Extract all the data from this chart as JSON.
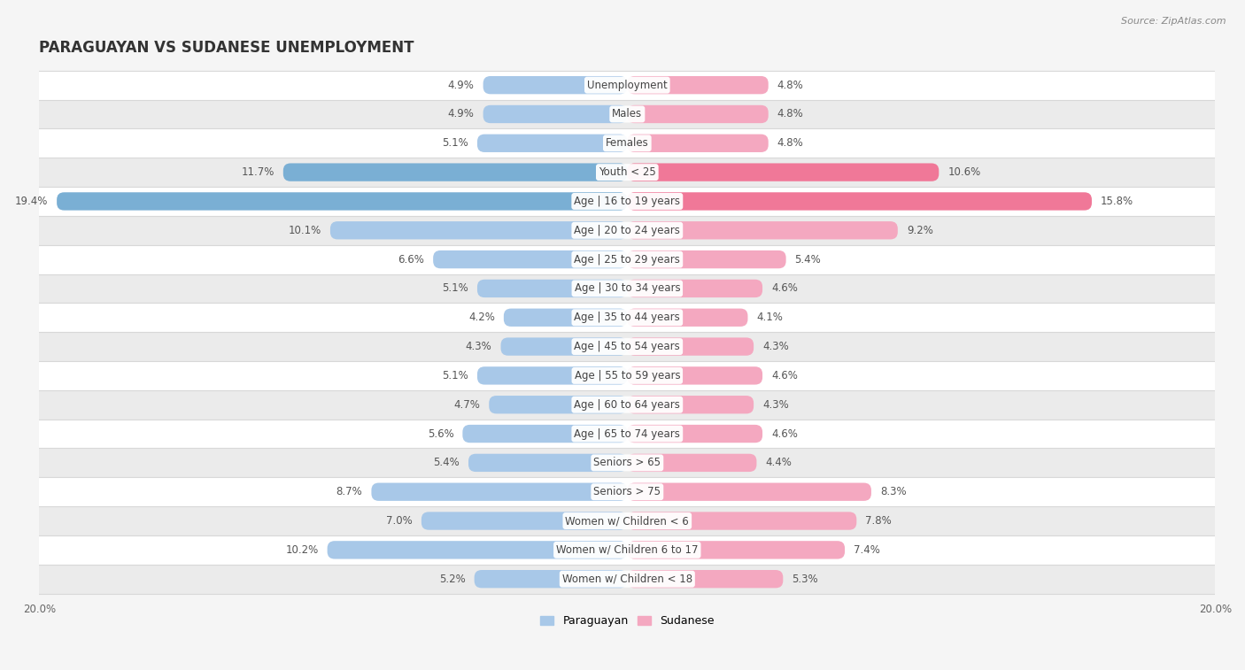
{
  "title": "PARAGUAYAN VS SUDANESE UNEMPLOYMENT",
  "source": "Source: ZipAtlas.com",
  "categories": [
    "Unemployment",
    "Males",
    "Females",
    "Youth < 25",
    "Age | 16 to 19 years",
    "Age | 20 to 24 years",
    "Age | 25 to 29 years",
    "Age | 30 to 34 years",
    "Age | 35 to 44 years",
    "Age | 45 to 54 years",
    "Age | 55 to 59 years",
    "Age | 60 to 64 years",
    "Age | 65 to 74 years",
    "Seniors > 65",
    "Seniors > 75",
    "Women w/ Children < 6",
    "Women w/ Children 6 to 17",
    "Women w/ Children < 18"
  ],
  "paraguayan": [
    4.9,
    4.9,
    5.1,
    11.7,
    19.4,
    10.1,
    6.6,
    5.1,
    4.2,
    4.3,
    5.1,
    4.7,
    5.6,
    5.4,
    8.7,
    7.0,
    10.2,
    5.2
  ],
  "sudanese": [
    4.8,
    4.8,
    4.8,
    10.6,
    15.8,
    9.2,
    5.4,
    4.6,
    4.1,
    4.3,
    4.6,
    4.3,
    4.6,
    4.4,
    8.3,
    7.8,
    7.4,
    5.3
  ],
  "paraguayan_color": "#a8c8e8",
  "sudanese_color": "#f4a8c0",
  "paraguayan_highlight_color": "#7aafd4",
  "sudanese_highlight_color": "#f07898",
  "highlight_rows": [
    3,
    4
  ],
  "axis_limit": 20.0,
  "background_color": "#f5f5f5",
  "row_colors": [
    "#ffffff",
    "#ebebeb"
  ],
  "row_line_color": "#d8d8d8",
  "label_fontsize": 8.5,
  "title_fontsize": 12,
  "source_fontsize": 8,
  "legend_fontsize": 9,
  "value_color": "#555555",
  "label_text_color": "#444444"
}
